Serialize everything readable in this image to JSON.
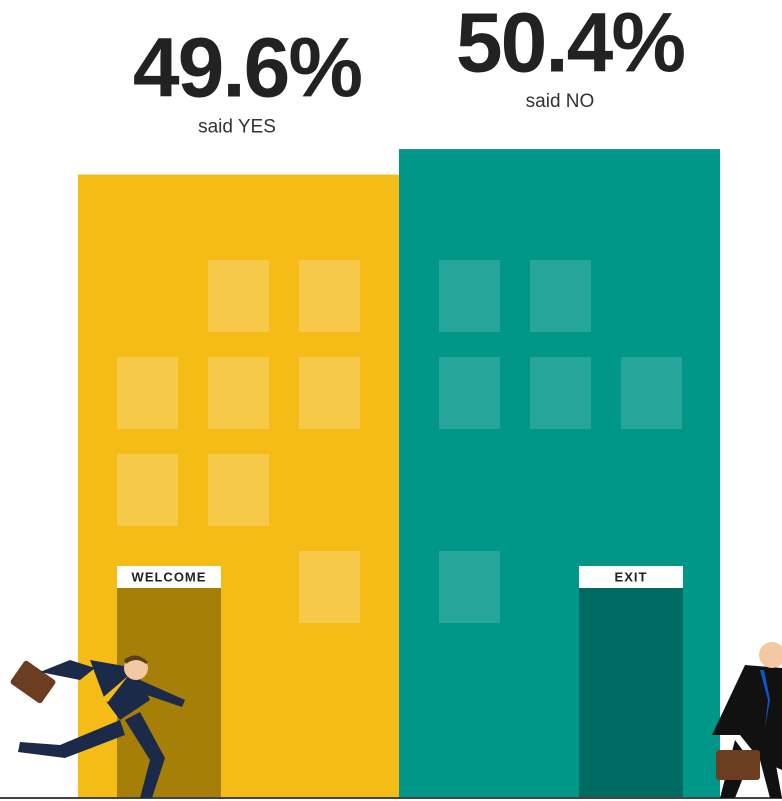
{
  "chart_data": {
    "type": "bar",
    "categories": [
      "said YES",
      "said NO"
    ],
    "values": [
      49.6,
      50.4
    ],
    "value_labels": [
      "49.6%",
      "50.4%"
    ],
    "colors": [
      "#f5bb16",
      "#009688"
    ],
    "annotations": [
      "WELCOME",
      "EXIT"
    ],
    "ylim": [
      30,
      51
    ]
  }
}
